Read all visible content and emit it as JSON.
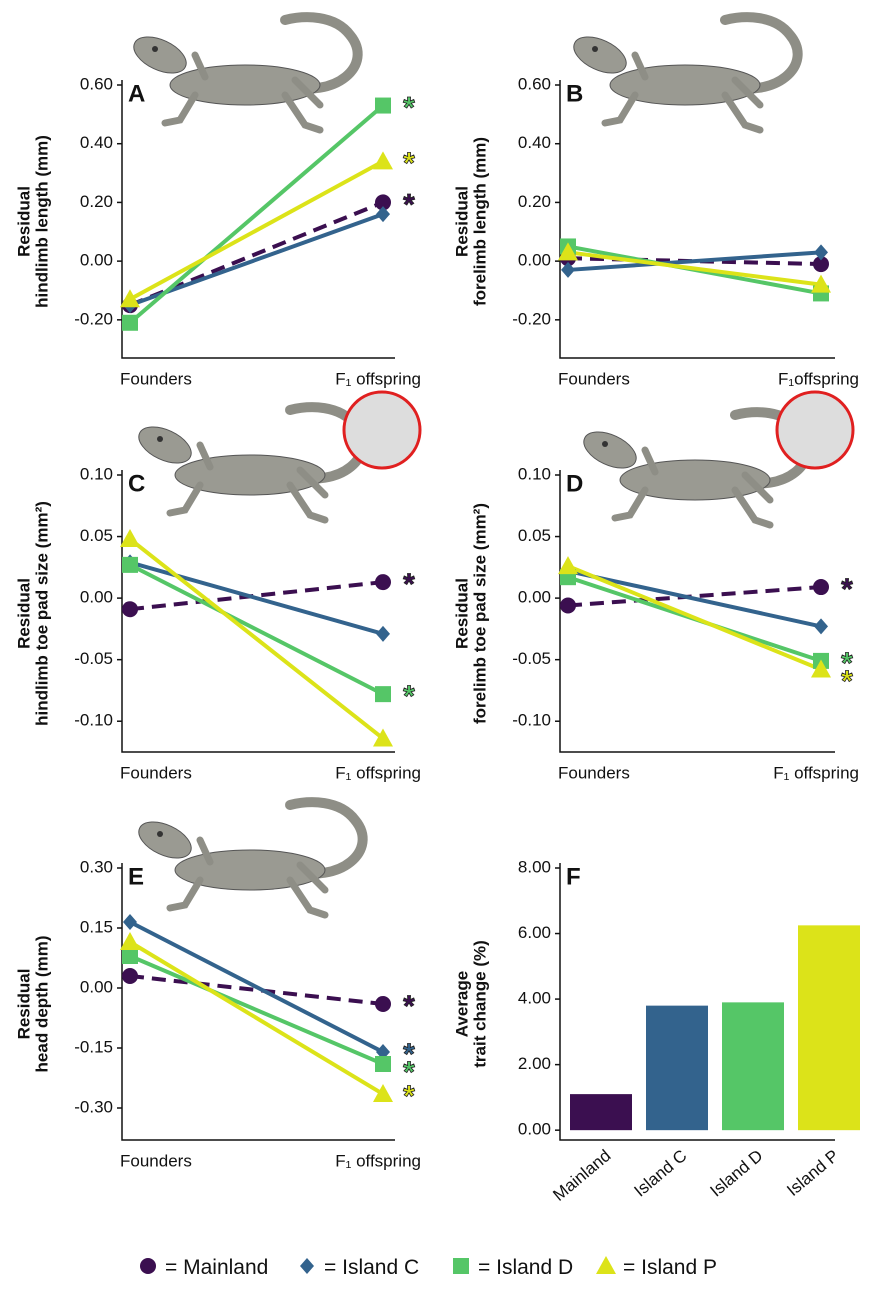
{
  "chart_data": [
    {
      "type": "line",
      "title": "A",
      "ylabel": [
        "Residual",
        "hindlimb length (mm)"
      ],
      "categories": [
        "Founders",
        "F₁ offspring"
      ],
      "ylim": [
        -0.33,
        0.6
      ],
      "yticks": [
        {
          "value": 0.6,
          "label": "0.60"
        },
        {
          "value": 0.4,
          "label": "0.40"
        },
        {
          "value": 0.2,
          "label": "0.20"
        },
        {
          "value": 0,
          "label": "0.00"
        },
        {
          "value": -0.2,
          "label": "-0.20"
        }
      ],
      "series": [
        {
          "name": "Mainland",
          "color": "#3b0f50",
          "marker": "circle",
          "linestyle": "dashed",
          "values": [
            -0.15,
            0.2
          ],
          "annotation": "*"
        },
        {
          "name": "Island C",
          "color": "#33638d",
          "marker": "diamond",
          "linestyle": "solid",
          "values": [
            -0.15,
            0.16
          ]
        },
        {
          "name": "Island D",
          "color": "#55c667",
          "marker": "square",
          "linestyle": "solid",
          "values": [
            -0.21,
            0.53
          ],
          "annotation": "*"
        },
        {
          "name": "Island P",
          "color": "#dce319",
          "marker": "triangle",
          "linestyle": "solid",
          "values": [
            -0.13,
            0.34
          ],
          "annotation": "*"
        }
      ]
    },
    {
      "type": "line",
      "title": "B",
      "ylabel": [
        "Residual",
        "forelimb length (mm)"
      ],
      "categories": [
        "Founders",
        "F₁offspring"
      ],
      "ylim": [
        -0.33,
        0.6
      ],
      "yticks": [
        {
          "value": 0.6,
          "label": "0.60"
        },
        {
          "value": 0.4,
          "label": "0.40"
        },
        {
          "value": 0.2,
          "label": "0.20"
        },
        {
          "value": 0,
          "label": "0.00"
        },
        {
          "value": -0.2,
          "label": "-0.20"
        }
      ],
      "series": [
        {
          "color": "#3b0f50",
          "marker": "circle",
          "linestyle": "dashed",
          "values": [
            0.01,
            -0.01
          ]
        },
        {
          "color": "#33638d",
          "marker": "diamond",
          "linestyle": "solid",
          "values": [
            -0.03,
            0.03
          ]
        },
        {
          "color": "#55c667",
          "marker": "square",
          "linestyle": "solid",
          "values": [
            0.05,
            -0.11
          ]
        },
        {
          "color": "#dce319",
          "marker": "triangle",
          "linestyle": "solid",
          "values": [
            0.03,
            -0.08
          ]
        }
      ]
    },
    {
      "type": "line",
      "title": "C",
      "ylabel": [
        "Residual",
        "hindlimb toe pad size (mm²)"
      ],
      "categories": [
        "Founders",
        "F₁ offspring"
      ],
      "ylim": [
        -0.125,
        0.1
      ],
      "yticks": [
        {
          "value": 0.1,
          "label": "0.10"
        },
        {
          "value": 0.05,
          "label": "0.05"
        },
        {
          "value": 0,
          "label": "0.00"
        },
        {
          "value": -0.05,
          "label": "-0.05"
        },
        {
          "value": -0.1,
          "label": "-0.10"
        }
      ],
      "series": [
        {
          "color": "#3b0f50",
          "marker": "circle",
          "linestyle": "dashed",
          "values": [
            -0.009,
            0.013
          ],
          "annotation": "*"
        },
        {
          "color": "#33638d",
          "marker": "diamond",
          "linestyle": "solid",
          "values": [
            0.029,
            -0.029
          ]
        },
        {
          "color": "#55c667",
          "marker": "square",
          "linestyle": "solid",
          "values": [
            0.027,
            -0.078
          ],
          "annotation": "*"
        },
        {
          "color": "#dce319",
          "marker": "triangle",
          "linestyle": "solid",
          "values": [
            0.048,
            -0.114
          ]
        }
      ]
    },
    {
      "type": "line",
      "title": "D",
      "ylabel": [
        "Residual",
        "forelimb toe pad size (mm²)"
      ],
      "categories": [
        "Founders",
        "F₁ offspring"
      ],
      "ylim": [
        -0.125,
        0.1
      ],
      "yticks": [
        {
          "value": 0.1,
          "label": "0.10"
        },
        {
          "value": 0.05,
          "label": "0.05"
        },
        {
          "value": 0,
          "label": "0.00"
        },
        {
          "value": -0.05,
          "label": "-0.05"
        },
        {
          "value": -0.1,
          "label": "-0.10"
        }
      ],
      "series": [
        {
          "color": "#3b0f50",
          "marker": "circle",
          "linestyle": "dashed",
          "values": [
            -0.006,
            0.009
          ],
          "annotation": "*"
        },
        {
          "color": "#33638d",
          "marker": "diamond",
          "linestyle": "solid",
          "values": [
            0.022,
            -0.023
          ]
        },
        {
          "color": "#55c667",
          "marker": "square",
          "linestyle": "solid",
          "values": [
            0.017,
            -0.051
          ],
          "annotation": "*"
        },
        {
          "color": "#dce319",
          "marker": "triangle",
          "linestyle": "solid",
          "values": [
            0.026,
            -0.058
          ],
          "annotation": "*"
        }
      ]
    },
    {
      "type": "line",
      "title": "E",
      "ylabel": [
        "Residual",
        "head depth (mm)"
      ],
      "categories": [
        "Founders",
        "F₁ offspring"
      ],
      "ylim": [
        -0.38,
        0.3
      ],
      "yticks": [
        {
          "value": 0.3,
          "label": "0.30"
        },
        {
          "value": 0.15,
          "label": "0.15"
        },
        {
          "value": 0,
          "label": "0.00"
        },
        {
          "value": -0.15,
          "label": "-0.15"
        },
        {
          "value": -0.3,
          "label": "-0.30"
        }
      ],
      "series": [
        {
          "color": "#3b0f50",
          "marker": "circle",
          "linestyle": "dashed",
          "values": [
            0.03,
            -0.04
          ],
          "annotation": "*"
        },
        {
          "color": "#33638d",
          "marker": "diamond",
          "linestyle": "solid",
          "values": [
            0.165,
            -0.16
          ],
          "annotation": "*"
        },
        {
          "color": "#55c667",
          "marker": "square",
          "linestyle": "solid",
          "values": [
            0.08,
            -0.19
          ],
          "annotation": "*"
        },
        {
          "color": "#dce319",
          "marker": "triangle",
          "linestyle": "solid",
          "values": [
            0.115,
            -0.265
          ],
          "annotation": "*"
        }
      ]
    },
    {
      "type": "bar",
      "title": "F",
      "ylabel": [
        "Average",
        "trait change (%)"
      ],
      "categories": [
        "Mainland",
        "Island C",
        "Island D",
        "Island P"
      ],
      "values": [
        1.1,
        3.8,
        3.9,
        6.25
      ],
      "colors": [
        "#3b0f50",
        "#33638d",
        "#55c667",
        "#dce319"
      ],
      "ylim": [
        -0.3,
        8
      ],
      "yticks": [
        {
          "value": 0,
          "label": "0.00"
        },
        {
          "value": 2,
          "label": "2.00"
        },
        {
          "value": 4,
          "label": "4.00"
        },
        {
          "value": 6,
          "label": "6.00"
        },
        {
          "value": 8,
          "label": "8.00"
        }
      ]
    }
  ],
  "legend": {
    "separator": "="
  }
}
